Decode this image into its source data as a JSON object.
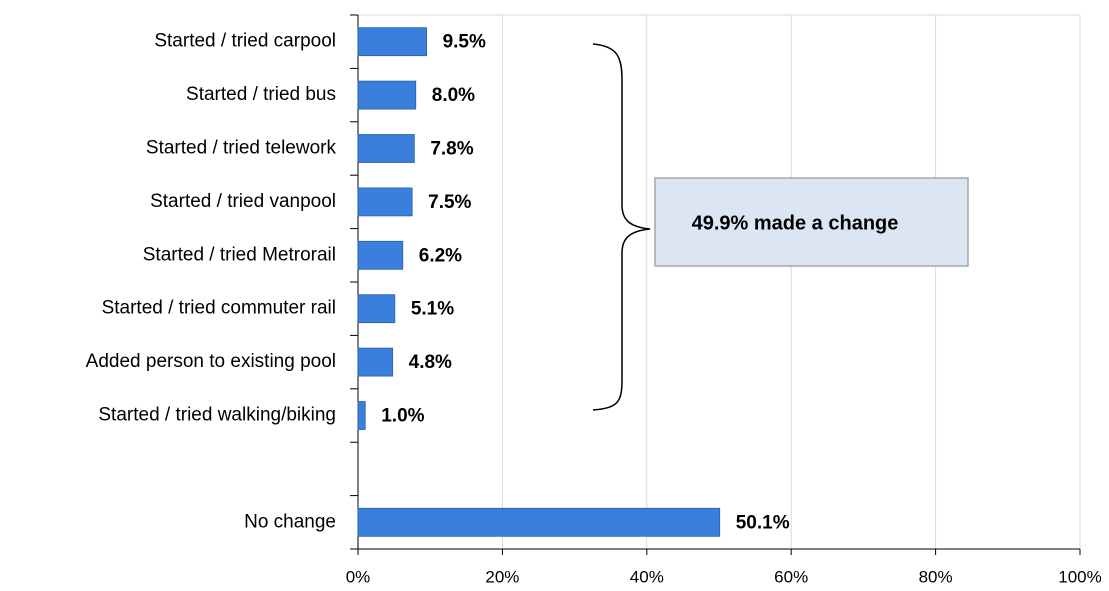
{
  "chart_data": {
    "type": "bar",
    "orientation": "horizontal",
    "categories": [
      "Started / tried carpool",
      "Started / tried bus",
      "Started / tried telework",
      "Started / tried vanpool",
      "Started / tried Metrorail",
      "Started / tried commuter rail",
      "Added person to existing pool",
      "Started / tried walking/biking",
      null,
      "No change"
    ],
    "values": [
      9.5,
      8.0,
      7.8,
      7.5,
      6.2,
      5.1,
      4.8,
      1.0,
      null,
      50.1
    ],
    "value_labels": [
      "9.5%",
      "8.0%",
      "7.8%",
      "7.5%",
      "6.2%",
      "5.1%",
      "4.8%",
      "1.0%",
      null,
      "50.1%"
    ],
    "color": "#3b7fdc",
    "xlim": [
      0,
      100
    ],
    "xticks": [
      {
        "value": 0,
        "label": "0%"
      },
      {
        "value": 20,
        "label": "20%"
      },
      {
        "value": 40,
        "label": "40%"
      },
      {
        "value": 60,
        "label": "60%"
      },
      {
        "value": 80,
        "label": "80%"
      },
      {
        "value": 100,
        "label": "100%"
      }
    ],
    "grid": true,
    "annotation": "49.9% made a change"
  }
}
